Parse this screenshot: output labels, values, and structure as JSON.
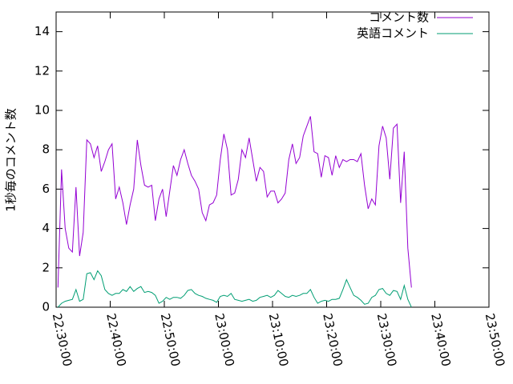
{
  "chart_data": {
    "type": "line",
    "ylabel": "1秒毎のコメント数",
    "x": [
      "22:30:20",
      "22:31:00",
      "22:31:40",
      "22:32:20",
      "22:33:00",
      "22:33:40",
      "22:34:20",
      "22:35:00",
      "22:35:40",
      "22:36:20",
      "22:37:00",
      "22:37:40",
      "22:38:20",
      "22:39:00",
      "22:39:40",
      "22:40:20",
      "22:41:00",
      "22:41:40",
      "22:42:20",
      "22:43:00",
      "22:43:40",
      "22:44:20",
      "22:45:00",
      "22:45:40",
      "22:46:20",
      "22:47:00",
      "22:47:40",
      "22:48:20",
      "22:49:00",
      "22:49:40",
      "22:50:20",
      "22:51:00",
      "22:51:40",
      "22:52:20",
      "22:53:00",
      "22:53:40",
      "22:54:20",
      "22:55:00",
      "22:55:40",
      "22:56:20",
      "22:57:00",
      "22:57:40",
      "22:58:20",
      "22:59:00",
      "22:59:40",
      "23:00:20",
      "23:01:00",
      "23:01:40",
      "23:02:20",
      "23:03:00",
      "23:03:40",
      "23:04:20",
      "23:05:00",
      "23:05:40",
      "23:06:20",
      "23:07:00",
      "23:07:40",
      "23:08:20",
      "23:09:00",
      "23:09:40",
      "23:10:20",
      "23:11:00",
      "23:11:40",
      "23:12:20",
      "23:13:00",
      "23:13:40",
      "23:14:20",
      "23:15:00",
      "23:15:40",
      "23:16:20",
      "23:17:00",
      "23:17:40",
      "23:18:20",
      "23:19:00",
      "23:19:40",
      "23:20:20",
      "23:21:00",
      "23:21:40",
      "23:22:20",
      "23:23:00",
      "23:23:40",
      "23:24:20",
      "23:25:00",
      "23:25:40",
      "23:26:20",
      "23:27:00",
      "23:27:40",
      "23:28:20",
      "23:29:00",
      "23:29:40",
      "23:30:20",
      "23:31:00",
      "23:31:40",
      "23:32:20",
      "23:33:00",
      "23:33:40",
      "23:34:20",
      "23:35:00",
      "23:35:40"
    ],
    "series": [
      {
        "name": "コメント数",
        "color": "#9400d3",
        "values": [
          1,
          7,
          4,
          3,
          2.8,
          6.1,
          2.6,
          3.8,
          8.5,
          8.3,
          7.6,
          8.2,
          6.9,
          7.4,
          8.0,
          8.3,
          5.5,
          6.1,
          5.3,
          4.2,
          5.2,
          6.0,
          8.5,
          7.2,
          6.2,
          6.1,
          6.2,
          4.4,
          5.5,
          6.0,
          4.6,
          5.9,
          7.2,
          6.7,
          7.5,
          8.0,
          7.3,
          6.7,
          6.4,
          6.0,
          4.8,
          4.4,
          5.2,
          5.3,
          5.7,
          7.5,
          8.8,
          8.0,
          5.7,
          5.8,
          6.5,
          8.0,
          7.6,
          8.6,
          7.5,
          6.4,
          7.1,
          6.9,
          5.6,
          5.9,
          5.9,
          5.3,
          5.5,
          5.8,
          7.5,
          8.3,
          7.3,
          7.6,
          8.7,
          9.2,
          9.7,
          7.9,
          7.8,
          6.6,
          7.7,
          7.6,
          6.7,
          7.7,
          7.1,
          7.5,
          7.4,
          7.5,
          7.5,
          7.4,
          7.8,
          6.2,
          5.0,
          5.5,
          5.2,
          8.2,
          9.2,
          8.6,
          6.5,
          9.1,
          9.3,
          5.3,
          7.9,
          3.0,
          1.0
        ]
      },
      {
        "name": "英語コメント",
        "color": "#009e73",
        "values": [
          0,
          0.2,
          0.3,
          0.35,
          0.4,
          0.9,
          0.3,
          0.4,
          1.7,
          1.75,
          1.4,
          1.85,
          1.6,
          0.9,
          0.7,
          0.6,
          0.7,
          0.7,
          0.9,
          0.8,
          1.05,
          0.8,
          0.95,
          1.05,
          0.75,
          0.8,
          0.75,
          0.6,
          0.2,
          0.3,
          0.5,
          0.4,
          0.5,
          0.5,
          0.45,
          0.6,
          0.85,
          0.9,
          0.7,
          0.6,
          0.55,
          0.45,
          0.4,
          0.35,
          0.25,
          0.55,
          0.6,
          0.55,
          0.7,
          0.4,
          0.35,
          0.3,
          0.35,
          0.4,
          0.3,
          0.35,
          0.5,
          0.55,
          0.6,
          0.5,
          0.6,
          0.85,
          0.7,
          0.55,
          0.5,
          0.6,
          0.55,
          0.6,
          0.7,
          0.7,
          0.9,
          0.5,
          0.2,
          0.3,
          0.35,
          0.3,
          0.4,
          0.4,
          0.45,
          0.9,
          1.4,
          1.0,
          0.6,
          0.5,
          0.35,
          0.15,
          0.2,
          0.5,
          0.6,
          0.9,
          0.95,
          0.7,
          0.6,
          0.85,
          0.8,
          0.4,
          1.1,
          0.4,
          0.0
        ]
      }
    ],
    "xlim": [
      "22:30:00",
      "23:50:00"
    ],
    "xticks": [
      "22:30:00",
      "22:40:00",
      "22:50:00",
      "23:00:00",
      "23:10:00",
      "23:20:00",
      "23:30:00",
      "23:40:00",
      "23:50:00"
    ],
    "ylim": [
      0,
      15
    ],
    "yticks": [
      0,
      2,
      4,
      6,
      8,
      10,
      12,
      14
    ],
    "legend": "upper right"
  }
}
